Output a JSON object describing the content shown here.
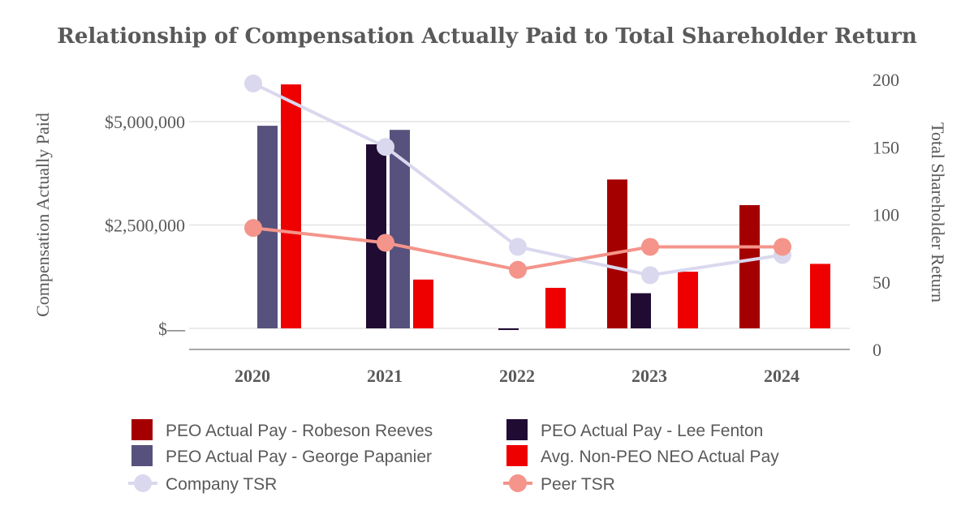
{
  "chart_data": {
    "type": "bar",
    "title": "Relationship of Compensation Actually Paid to Total Shareholder Return",
    "categories": [
      "2020",
      "2021",
      "2022",
      "2023",
      "2024"
    ],
    "y_left": {
      "label": "Compensation Actually Paid",
      "range": [
        -500000,
        6000000
      ],
      "ticks": [
        0,
        2500000,
        5000000
      ],
      "tick_labels": [
        "$—",
        "$2,500,000",
        "$5,000,000"
      ]
    },
    "y_right": {
      "label": "Total Shareholder Return",
      "range": [
        0,
        200
      ],
      "ticks": [
        0,
        50,
        100,
        150,
        200
      ],
      "tick_labels": [
        "0",
        "50",
        "100",
        "150",
        "200"
      ]
    },
    "grid": true,
    "legend_position": "bottom",
    "bar_series": [
      {
        "name": "PEO Actual Pay - Robeson Reeves",
        "color": "#A50000",
        "values": [
          null,
          null,
          null,
          3600000,
          2980000
        ]
      },
      {
        "name": "PEO Actual Pay - Lee Fenton",
        "color": "#200B33",
        "values": [
          null,
          4450000,
          -40000,
          850000,
          null
        ]
      },
      {
        "name": "PEO Actual Pay - George Papanier",
        "color": "#57527D",
        "values": [
          4900000,
          4800000,
          null,
          null,
          null
        ]
      },
      {
        "name": "Avg. Non-PEO NEO Actual Pay",
        "color": "#EE0000",
        "values": [
          5900000,
          1180000,
          980000,
          1370000,
          1560000
        ]
      }
    ],
    "line_series": [
      {
        "name": "Company TSR",
        "color": "#D9D8EE",
        "values": [
          197,
          150,
          76,
          55,
          70
        ]
      },
      {
        "name": "Peer TSR",
        "color": "#F4948A",
        "values": [
          90,
          79,
          59,
          76,
          76
        ]
      }
    ]
  }
}
